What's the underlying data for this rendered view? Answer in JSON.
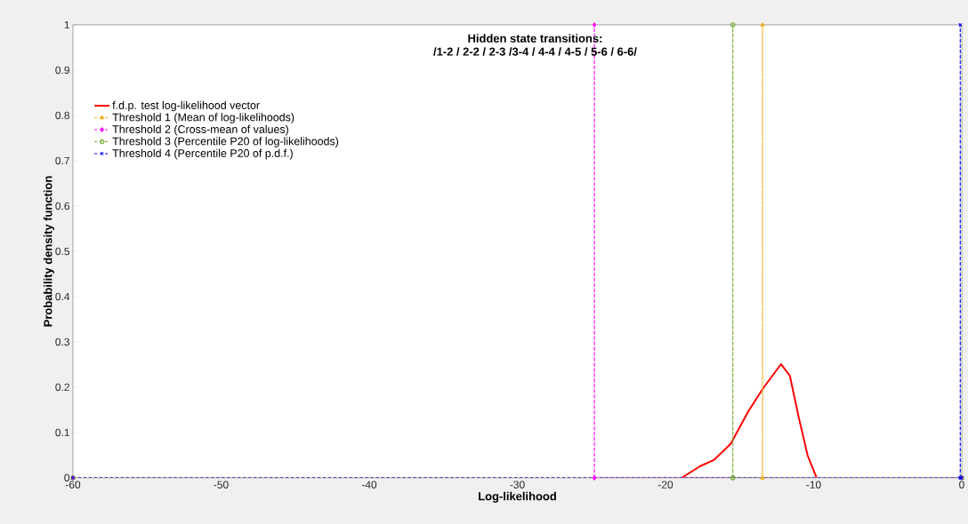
{
  "chart_data": {
    "type": "line",
    "title": "Hidden state transitions:",
    "subtitle": "/1-2 / 2-2 / 2-3 /3-4 / 4-4 / 4-5 / 5-6 / 6-6/",
    "xlabel": "Log-likelihood",
    "ylabel": "Probability density function",
    "xlim": [
      -60,
      0
    ],
    "ylim": [
      0,
      1
    ],
    "xticks": [
      -60,
      -50,
      -40,
      -30,
      -20,
      -10,
      0
    ],
    "yticks": [
      0,
      0.1,
      0.2,
      0.3,
      0.4,
      0.5,
      0.6,
      0.7,
      0.8,
      0.9,
      1
    ],
    "legend": "top left",
    "grid": false,
    "series": [
      {
        "name": "f.d.p. test log-likelihood vector",
        "color": "#ff0000",
        "marker": "none",
        "line_style": "solid",
        "x": [
          -18.9,
          -17.7,
          -16.7,
          -15.6,
          -14.4,
          -13.4,
          -12.2,
          -11.6,
          -11.0,
          -10.4,
          -9.8
        ],
        "values": [
          0,
          0.025,
          0.04,
          0.075,
          0.147,
          0.198,
          0.251,
          0.225,
          0.133,
          0.049,
          0
        ]
      },
      {
        "name": "Threshold 1 (Mean of log-likelihoods)",
        "color": "#edb120",
        "marker": "triangle",
        "line_style": "dashed",
        "x": [
          -60,
          -13.45,
          -13.45,
          -13.45,
          0
        ],
        "values": [
          0,
          0,
          1,
          0,
          0
        ]
      },
      {
        "name": "Threshold 2 (Cross-mean of values)",
        "color": "#ff00ff",
        "marker": "diamond",
        "line_style": "dashed",
        "x": [
          -60,
          -24.8,
          -24.8,
          -24.8,
          0
        ],
        "values": [
          0,
          0,
          1,
          0,
          0
        ]
      },
      {
        "name": "Threshold 3 (Percentile P20 of log-likelihoods)",
        "color": "#77ac30",
        "marker": "circle",
        "line_style": "dashed",
        "x": [
          -60,
          -15.45,
          -15.45,
          -15.45,
          0
        ],
        "values": [
          0,
          0,
          1,
          0,
          0
        ]
      },
      {
        "name": "Threshold 4 (Percentile P20 of p.d.f.)",
        "color": "#0000ff",
        "marker": "cross",
        "line_style": "dashed",
        "x": [
          -60,
          -0.1,
          -0.1,
          -0.1,
          0
        ],
        "values": [
          0,
          0,
          1,
          0,
          0
        ]
      }
    ]
  }
}
